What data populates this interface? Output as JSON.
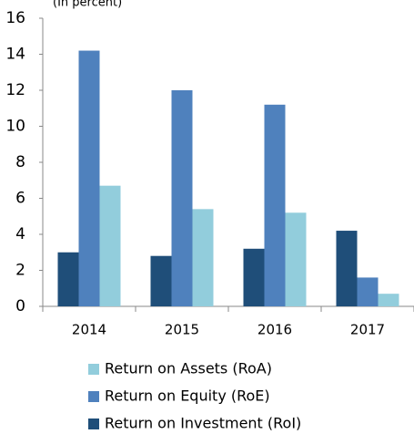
{
  "chart_data": {
    "type": "bar",
    "subtitle": "(In percent)",
    "categories": [
      "2014",
      "2015",
      "2016",
      "2017"
    ],
    "series": [
      {
        "name": "Return on Investment (RoI)",
        "color": "#1f4e79",
        "values": [
          3.0,
          2.8,
          3.2,
          4.2
        ]
      },
      {
        "name": "Return on Equity (RoE)",
        "color": "#4f81bd",
        "values": [
          14.2,
          12.0,
          11.2,
          1.6
        ]
      },
      {
        "name": "Return on Assets (RoA)",
        "color": "#92cddc",
        "values": [
          6.7,
          5.4,
          5.2,
          0.7
        ]
      }
    ],
    "ylim": [
      0,
      16
    ],
    "yticks": [
      0,
      2,
      4,
      6,
      8,
      10,
      12,
      14,
      16
    ],
    "grid": false
  }
}
